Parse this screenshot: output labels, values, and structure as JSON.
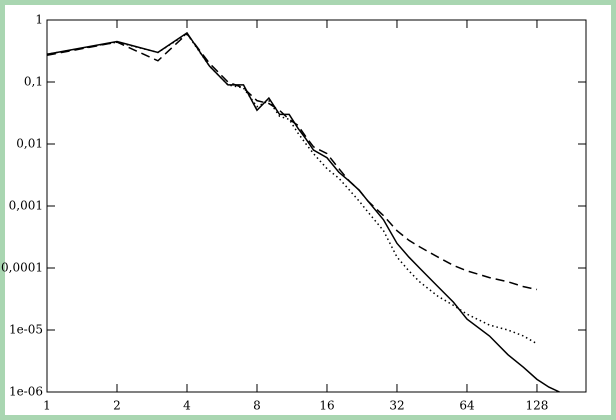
{
  "chart_data": {
    "type": "line",
    "xscale": "log",
    "yscale": "log",
    "xlim": [
      1,
      208
    ],
    "xticks": [
      1,
      2,
      4,
      8,
      16,
      32,
      64,
      128
    ],
    "ylim": [
      1e-06,
      1
    ],
    "yticks": [
      {
        "value": 1e-06,
        "label": "1e-06"
      },
      {
        "value": 1e-05,
        "label": "1e-05"
      },
      {
        "value": 0.0001,
        "label": "0,0001"
      },
      {
        "value": 0.001,
        "label": "0,001"
      },
      {
        "value": 0.01,
        "label": "0,01"
      },
      {
        "value": 0.1,
        "label": "0,1"
      },
      1
    ],
    "series": [
      {
        "color": "#000000",
        "dash": "solid",
        "x": [
          1,
          2,
          3,
          4,
          5,
          6,
          7,
          8,
          9,
          10,
          11,
          12,
          13,
          14,
          16,
          18,
          20,
          22,
          24,
          28,
          32,
          36,
          40,
          48,
          56,
          64,
          80,
          96,
          112,
          128,
          144,
          160
        ],
        "values": [
          0.28,
          0.45,
          0.3,
          0.62,
          0.18,
          0.09,
          0.09,
          0.035,
          0.055,
          0.03,
          0.03,
          0.018,
          0.012,
          0.008,
          0.006,
          0.0035,
          0.0025,
          0.0018,
          0.0012,
          0.0006,
          0.00025,
          0.00015,
          0.0001,
          5e-05,
          2.8e-05,
          1.5e-05,
          8e-06,
          4e-06,
          2.5e-06,
          1.6e-06,
          1.2e-06,
          1e-06
        ]
      },
      {
        "color": "#000000",
        "dash": "dashed",
        "x": [
          1,
          2,
          3,
          4,
          5,
          6,
          7,
          8,
          9,
          10,
          11,
          12,
          13,
          14,
          16,
          18,
          20,
          22,
          24,
          28,
          32,
          36,
          40,
          48,
          56,
          64,
          80,
          96,
          112,
          128
        ],
        "values": [
          0.27,
          0.44,
          0.22,
          0.6,
          0.2,
          0.1,
          0.08,
          0.05,
          0.045,
          0.035,
          0.025,
          0.02,
          0.013,
          0.009,
          0.007,
          0.004,
          0.0025,
          0.0018,
          0.0012,
          0.0007,
          0.0004,
          0.00028,
          0.00022,
          0.00015,
          0.00011,
          9e-05,
          7e-05,
          6e-05,
          5e-05,
          4.5e-05
        ]
      },
      {
        "color": "#000000",
        "dash": "dotted",
        "x": [
          1,
          2,
          3,
          4,
          5,
          6,
          7,
          8,
          9,
          10,
          11,
          12,
          13,
          14,
          16,
          18,
          20,
          22,
          24,
          28,
          32,
          36,
          40,
          48,
          56,
          64,
          80,
          96,
          112,
          128
        ],
        "values": [
          0.28,
          0.44,
          0.3,
          0.6,
          0.18,
          0.09,
          0.08,
          0.04,
          0.05,
          0.028,
          0.025,
          0.015,
          0.01,
          0.007,
          0.004,
          0.0028,
          0.0018,
          0.0012,
          0.0008,
          0.0004,
          0.00015,
          9e-05,
          6e-05,
          3.5e-05,
          2.5e-05,
          1.8e-05,
          1.2e-05,
          1e-05,
          8e-06,
          6e-06
        ]
      }
    ]
  }
}
